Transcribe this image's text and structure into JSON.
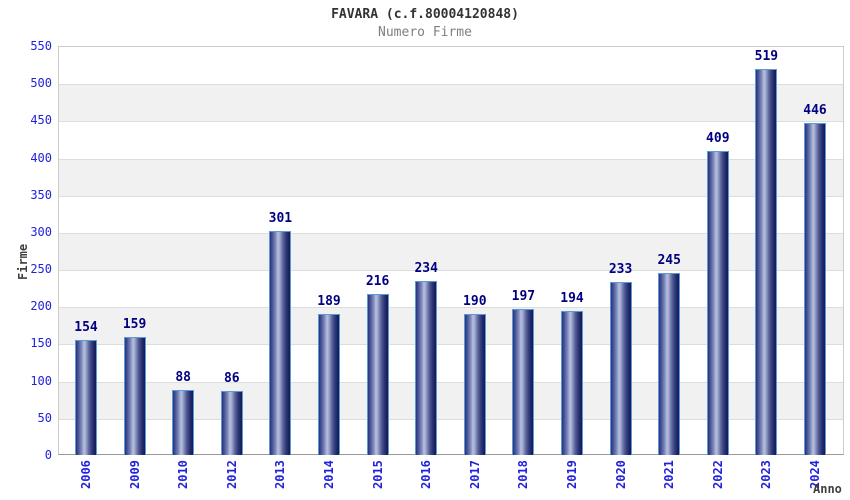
{
  "chart_data": {
    "type": "bar",
    "title": "FAVARA (c.f.80004120848)",
    "subtitle": "Numero Firme",
    "xlabel": "Anno",
    "ylabel": "Firme",
    "categories": [
      "2006",
      "2009",
      "2010",
      "2012",
      "2013",
      "2014",
      "2015",
      "2016",
      "2017",
      "2018",
      "2019",
      "2020",
      "2021",
      "2022",
      "2023",
      "2024"
    ],
    "values": [
      154,
      159,
      88,
      86,
      301,
      189,
      216,
      234,
      190,
      197,
      194,
      233,
      245,
      409,
      519,
      446
    ],
    "ylim": [
      0,
      550
    ],
    "ytick_step": 50,
    "grid": true,
    "legend_position": "none",
    "value_labels_shown": true,
    "colors": {
      "bar_border": "#5b9bd5",
      "bar_gradient_dark": "#1b2a75",
      "bar_gradient_light": "#b9c1e0",
      "tick_label": "#2222dd",
      "value_label": "#000080",
      "title": "#333333",
      "subtitle": "#808080",
      "axis_title": "#404040",
      "band_gray": "#f1f1f1",
      "gridline": "#dddddd"
    }
  }
}
